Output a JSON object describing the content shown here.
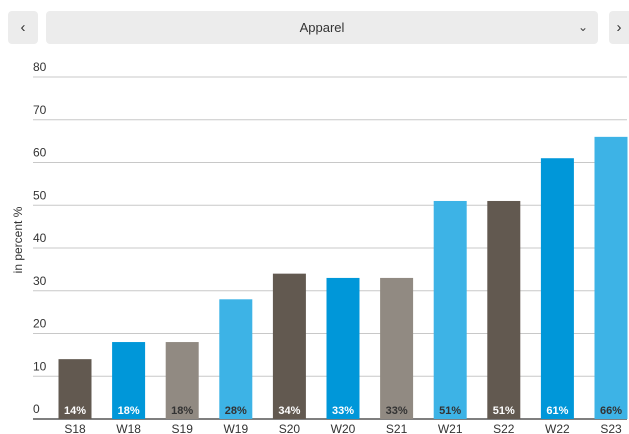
{
  "nav": {
    "prev_icon": "‹",
    "next_icon": "›",
    "selected": "Apparel",
    "dropdown_icon": "⌄"
  },
  "chart_data": {
    "type": "bar",
    "categories": [
      "S18",
      "W18",
      "S19",
      "W19",
      "S20",
      "W20",
      "S21",
      "W21",
      "S22",
      "W22",
      "S23"
    ],
    "values": [
      14,
      18,
      18,
      28,
      34,
      33,
      33,
      51,
      51,
      61,
      66
    ],
    "data_labels": [
      "14%",
      "18%",
      "18%",
      "28%",
      "34%",
      "33%",
      "33%",
      "51%",
      "51%",
      "61%",
      "66%"
    ],
    "colors": [
      "#625950",
      "#0097d9",
      "#918a82",
      "#3db3e6",
      "#625950",
      "#0097d9",
      "#918a82",
      "#3db3e6",
      "#625950",
      "#0097d9",
      "#3db3e6"
    ],
    "label_colors": [
      "#ffffff",
      "#ffffff",
      "#333333",
      "#333333",
      "#ffffff",
      "#ffffff",
      "#333333",
      "#333333",
      "#ffffff",
      "#ffffff",
      "#333333"
    ],
    "ylabel": "in percent %",
    "yticks": [
      0,
      10,
      20,
      30,
      40,
      50,
      60,
      70,
      80
    ],
    "ylim": [
      0,
      80
    ],
    "grid": true
  }
}
